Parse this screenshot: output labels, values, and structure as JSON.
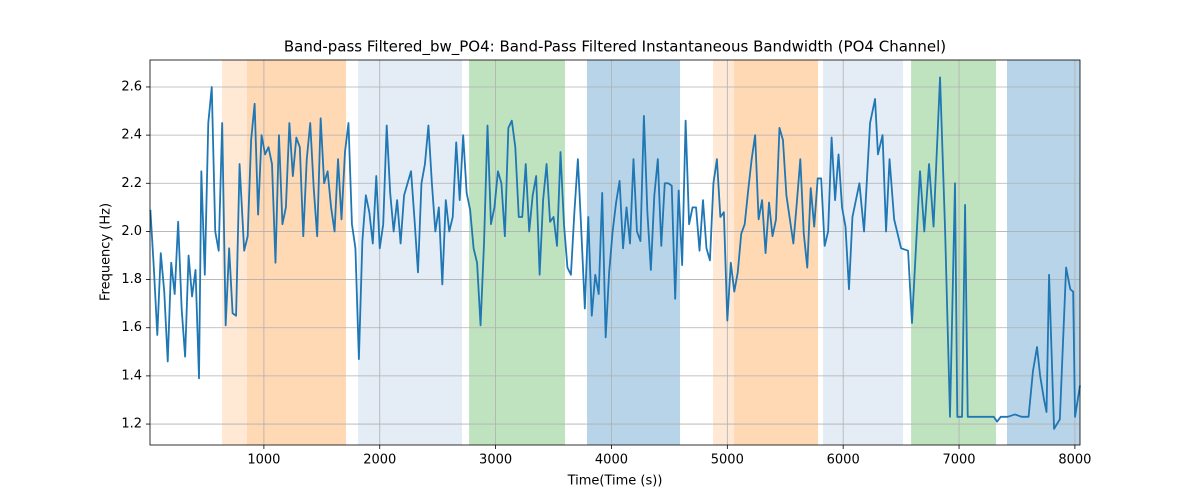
{
  "chart_data": {
    "type": "line",
    "title": "Band-pass Filtered_bw_PO4: Band-Pass Filtered Instantaneous Bandwidth (PO4 Channel)",
    "x_label": "Time(Time (s))",
    "y_label": "Frequency (Hz)",
    "xlim": [
      17,
      8044
    ],
    "ylim": [
      1.113,
      2.712
    ],
    "xticks": [
      1000,
      2000,
      3000,
      4000,
      5000,
      6000,
      7000,
      8000
    ],
    "yticks": [
      1.2,
      1.4,
      1.6,
      1.8,
      {
        "value": 2,
        "label": "2.0"
      },
      2.2,
      2.4,
      2.6
    ],
    "grid": true,
    "shaded_regions": [
      {
        "start": 639,
        "end": 854,
        "color": "#ffe8d4"
      },
      {
        "start": 854,
        "end": 1709,
        "color": "#ffd8b4"
      },
      {
        "start": 1813,
        "end": 2710,
        "color": "#e4ecf6"
      },
      {
        "start": 2771,
        "end": 3599,
        "color": "#c0e3bf"
      },
      {
        "start": 3789,
        "end": 4592,
        "color": "#b8d4e8"
      },
      {
        "start": 4877,
        "end": 5058,
        "color": "#ffe8d4"
      },
      {
        "start": 5058,
        "end": 5783,
        "color": "#ffd8b4"
      },
      {
        "start": 5826,
        "end": 6517,
        "color": "#e4ecf6"
      },
      {
        "start": 6586,
        "end": 7319,
        "color": "#c0e3bf"
      },
      {
        "start": 7414,
        "end": 8044,
        "color": "#b8d4e8"
      }
    ],
    "x": [
      20,
      50,
      80,
      110,
      140,
      170,
      200,
      230,
      260,
      290,
      320,
      350,
      380,
      410,
      440,
      460,
      490,
      520,
      550,
      580,
      610,
      640,
      670,
      700,
      730,
      760,
      790,
      830,
      860,
      890,
      920,
      950,
      980,
      1010,
      1040,
      1070,
      1100,
      1130,
      1160,
      1190,
      1220,
      1250,
      1280,
      1310,
      1340,
      1370,
      1400,
      1430,
      1460,
      1490,
      1520,
      1550,
      1580,
      1610,
      1640,
      1670,
      1700,
      1730,
      1760,
      1790,
      1820,
      1850,
      1880,
      1910,
      1940,
      1970,
      2000,
      2030,
      2060,
      2090,
      2120,
      2150,
      2180,
      2210,
      2240,
      2270,
      2300,
      2330,
      2360,
      2390,
      2420,
      2450,
      2480,
      2510,
      2540,
      2570,
      2600,
      2630,
      2660,
      2690,
      2720,
      2750,
      2780,
      2810,
      2840,
      2870,
      2900,
      2930,
      2960,
      2990,
      3020,
      3050,
      3080,
      3110,
      3140,
      3170,
      3200,
      3230,
      3260,
      3290,
      3320,
      3350,
      3380,
      3410,
      3440,
      3470,
      3500,
      3530,
      3560,
      3590,
      3620,
      3650,
      3680,
      3710,
      3740,
      3770,
      3800,
      3830,
      3860,
      3890,
      3920,
      3950,
      3980,
      4010,
      4040,
      4070,
      4100,
      4130,
      4160,
      4190,
      4220,
      4250,
      4280,
      4310,
      4340,
      4370,
      4400,
      4430,
      4460,
      4490,
      4520,
      4550,
      4580,
      4610,
      4640,
      4670,
      4700,
      4730,
      4760,
      4790,
      4820,
      4850,
      4880,
      4910,
      4940,
      4970,
      5000,
      5030,
      5060,
      5090,
      5120,
      5150,
      5180,
      5210,
      5240,
      5270,
      5300,
      5330,
      5360,
      5390,
      5420,
      5450,
      5480,
      5510,
      5540,
      5570,
      5600,
      5630,
      5660,
      5690,
      5720,
      5750,
      5780,
      5810,
      5840,
      5870,
      5900,
      5930,
      5960,
      5990,
      6020,
      6050,
      6080,
      6110,
      6140,
      6180,
      6232,
      6275,
      6300,
      6340,
      6370,
      6400,
      6440,
      6500,
      6560,
      6594,
      6630,
      6663,
      6700,
      6741,
      6780,
      6836,
      6880,
      6922,
      6965,
      6985,
      7026,
      7052,
      7075,
      7150,
      7250,
      7300,
      7328,
      7360,
      7420,
      7483,
      7540,
      7600,
      7638,
      7673,
      7700,
      7734,
      7755,
      7777,
      7820,
      7870,
      7924,
      7960,
      7985,
      8001,
      8044
    ],
    "series": [
      {
        "name": "bw_PO4",
        "color": "#1f77b4",
        "values": [
          2.09,
          1.85,
          1.57,
          1.91,
          1.75,
          1.46,
          1.87,
          1.74,
          2.04,
          1.68,
          1.48,
          1.9,
          1.73,
          1.84,
          1.39,
          2.25,
          1.82,
          2.45,
          2.6,
          2.0,
          1.92,
          2.45,
          1.61,
          1.93,
          1.66,
          1.65,
          2.28,
          1.92,
          1.98,
          2.38,
          2.53,
          2.07,
          2.4,
          2.32,
          2.35,
          2.28,
          1.87,
          2.4,
          2.03,
          2.1,
          2.45,
          2.23,
          2.39,
          2.35,
          1.98,
          2.3,
          2.45,
          2.18,
          1.98,
          2.47,
          2.2,
          2.25,
          2.1,
          2.0,
          2.3,
          2.05,
          2.33,
          2.45,
          2.03,
          1.93,
          1.47,
          1.96,
          2.15,
          2.08,
          1.95,
          2.23,
          1.93,
          2.03,
          2.44,
          2.16,
          2.0,
          2.13,
          1.95,
          2.15,
          2.2,
          2.25,
          2.05,
          1.83,
          2.2,
          2.28,
          2.44,
          2.2,
          2.0,
          2.1,
          1.78,
          2.13,
          2.0,
          2.06,
          2.37,
          2.13,
          2.4,
          2.16,
          2.09,
          1.93,
          1.87,
          1.61,
          1.95,
          2.44,
          2.03,
          2.1,
          2.25,
          2.2,
          1.98,
          2.43,
          2.46,
          2.35,
          2.06,
          2.06,
          2.28,
          2.0,
          2.15,
          2.23,
          1.82,
          2.13,
          2.28,
          2.04,
          2.06,
          1.94,
          2.33,
          2.03,
          1.85,
          1.82,
          2.08,
          2.3,
          2.0,
          1.68,
          2.06,
          1.65,
          1.82,
          1.74,
          2.16,
          1.56,
          1.83,
          2.0,
          2.12,
          2.21,
          1.93,
          2.1,
          1.95,
          2.3,
          2.0,
          1.96,
          2.48,
          2.08,
          1.84,
          2.15,
          2.3,
          1.94,
          2.2,
          2.2,
          2.19,
          1.72,
          2.17,
          1.86,
          2.46,
          2.03,
          2.1,
          2.1,
          1.92,
          2.13,
          1.93,
          1.88,
          2.2,
          2.3,
          2.06,
          2.08,
          1.63,
          1.87,
          1.75,
          1.83,
          1.99,
          2.03,
          2.17,
          2.3,
          2.4,
          2.05,
          2.13,
          1.91,
          2.12,
          1.98,
          2.05,
          2.43,
          2.38,
          2.15,
          2.05,
          1.95,
          2.12,
          2.3,
          1.99,
          1.85,
          2.18,
          2.02,
          2.22,
          2.22,
          1.94,
          2.0,
          2.39,
          2.13,
          2.32,
          2.1,
          2.02,
          1.76,
          2.06,
          2.13,
          2.2,
          2.0,
          2.45,
          2.55,
          2.32,
          2.4,
          2.0,
          2.3,
          2.05,
          1.93,
          1.92,
          1.62,
          1.95,
          2.25,
          2.0,
          2.28,
          2.02,
          2.64,
          2.0,
          1.23,
          2.2,
          1.23,
          1.23,
          2.11,
          1.23,
          1.23,
          1.23,
          1.23,
          1.21,
          1.23,
          1.23,
          1.24,
          1.23,
          1.23,
          1.42,
          1.52,
          1.4,
          1.3,
          1.25,
          1.82,
          1.18,
          1.22,
          1.85,
          1.76,
          1.75,
          1.23,
          1.36
        ]
      }
    ]
  }
}
